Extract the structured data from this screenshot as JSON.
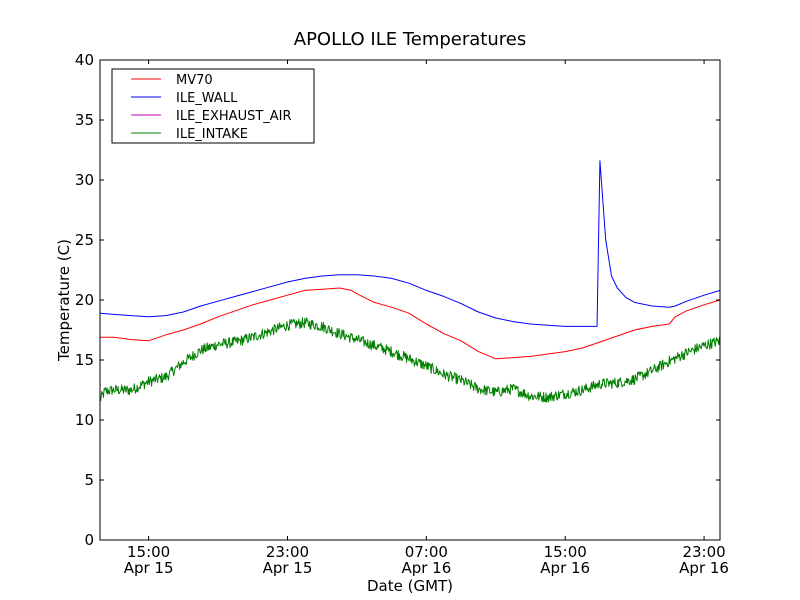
{
  "chart_data": {
    "type": "line",
    "title": "APOLLO ILE Temperatures",
    "xlabel": "Date (GMT)",
    "ylabel": "Temperature (C)",
    "xlim": [
      "2013-04-15 12:12",
      "2013-04-16 23:55"
    ],
    "ylim": [
      0,
      40
    ],
    "yticks": [
      0,
      5,
      10,
      15,
      20,
      25,
      30,
      35,
      40
    ],
    "xticks": [
      {
        "x": "2013-04-15 15:00",
        "time": "15:00",
        "date": "Apr 15"
      },
      {
        "x": "2013-04-15 23:00",
        "time": "23:00",
        "date": "Apr 15"
      },
      {
        "x": "2013-04-16 07:00",
        "time": "07:00",
        "date": "Apr 16"
      },
      {
        "x": "2013-04-16 15:00",
        "time": "15:00",
        "date": "Apr 16"
      },
      {
        "x": "2013-04-16 23:00",
        "time": "23:00",
        "date": "Apr 16"
      }
    ],
    "grid": false,
    "legend_position": "top-left",
    "series": [
      {
        "name": "MV70",
        "color": "#ff0000",
        "x": [
          "2013-04-15 12:12",
          "2013-04-15 13:00",
          "2013-04-15 14:00",
          "2013-04-15 15:00",
          "2013-04-15 16:00",
          "2013-04-15 17:00",
          "2013-04-15 18:00",
          "2013-04-15 19:00",
          "2013-04-15 20:00",
          "2013-04-15 21:00",
          "2013-04-15 22:00",
          "2013-04-15 23:00",
          "2013-04-16 00:00",
          "2013-04-16 01:00",
          "2013-04-16 02:00",
          "2013-04-16 02:40",
          "2013-04-16 03:10",
          "2013-04-16 04:00",
          "2013-04-16 05:00",
          "2013-04-16 06:00",
          "2013-04-16 06:40",
          "2013-04-16 07:00",
          "2013-04-16 08:00",
          "2013-04-16 09:00",
          "2013-04-16 10:00",
          "2013-04-16 11:00",
          "2013-04-16 12:00",
          "2013-04-16 13:00",
          "2013-04-16 14:00",
          "2013-04-16 15:00",
          "2013-04-16 16:00",
          "2013-04-16 17:00",
          "2013-04-16 18:00",
          "2013-04-16 19:00",
          "2013-04-16 20:00",
          "2013-04-16 21:00",
          "2013-04-16 21:20",
          "2013-04-16 22:00",
          "2013-04-16 23:00",
          "2013-04-16 23:55"
        ],
        "y": [
          16.9,
          16.9,
          16.7,
          16.6,
          17.1,
          17.5,
          18.0,
          18.6,
          19.1,
          19.6,
          20.0,
          20.4,
          20.8,
          20.9,
          21.0,
          20.8,
          20.4,
          19.8,
          19.4,
          18.9,
          18.3,
          18.0,
          17.2,
          16.6,
          15.7,
          15.1,
          15.2,
          15.3,
          15.5,
          15.7,
          16.0,
          16.5,
          17.0,
          17.5,
          17.8,
          18.0,
          18.6,
          19.1,
          19.6,
          20.0
        ]
      },
      {
        "name": "ILE_WALL",
        "color": "#0000ff",
        "x": [
          "2013-04-15 12:12",
          "2013-04-15 13:00",
          "2013-04-15 14:00",
          "2013-04-15 15:00",
          "2013-04-15 16:00",
          "2013-04-15 17:00",
          "2013-04-15 18:00",
          "2013-04-15 19:00",
          "2013-04-15 20:00",
          "2013-04-15 21:00",
          "2013-04-15 22:00",
          "2013-04-15 23:00",
          "2013-04-16 00:00",
          "2013-04-16 01:00",
          "2013-04-16 02:00",
          "2013-04-16 03:00",
          "2013-04-16 04:00",
          "2013-04-16 05:00",
          "2013-04-16 06:00",
          "2013-04-16 07:00",
          "2013-04-16 08:00",
          "2013-04-16 09:00",
          "2013-04-16 10:00",
          "2013-04-16 11:00",
          "2013-04-16 12:00",
          "2013-04-16 13:00",
          "2013-04-16 14:00",
          "2013-04-16 15:00",
          "2013-04-16 16:00",
          "2013-04-16 16:50",
          "2013-04-16 17:00",
          "2013-04-16 17:20",
          "2013-04-16 17:40",
          "2013-04-16 18:00",
          "2013-04-16 18:30",
          "2013-04-16 19:00",
          "2013-04-16 20:00",
          "2013-04-16 21:00",
          "2013-04-16 21:20",
          "2013-04-16 22:00",
          "2013-04-16 23:00",
          "2013-04-16 23:55"
        ],
        "y": [
          18.9,
          18.8,
          18.7,
          18.6,
          18.7,
          19.0,
          19.5,
          19.9,
          20.3,
          20.7,
          21.1,
          21.5,
          21.8,
          22.0,
          22.1,
          22.1,
          22.0,
          21.8,
          21.4,
          20.8,
          20.3,
          19.7,
          19.0,
          18.5,
          18.2,
          18.0,
          17.9,
          17.8,
          17.8,
          17.8,
          31.6,
          25.0,
          22.0,
          21.0,
          20.2,
          19.8,
          19.5,
          19.4,
          19.5,
          19.9,
          20.4,
          20.8
        ]
      },
      {
        "name": "ILE_EXHAUST_AIR",
        "color": "#bf00bf",
        "x": [],
        "y": []
      },
      {
        "name": "ILE_INTAKE",
        "color": "#008000",
        "x": [
          "2013-04-15 12:12",
          "2013-04-15 12:30",
          "2013-04-15 13:00",
          "2013-04-15 14:00",
          "2013-04-15 15:00",
          "2013-04-15 16:00",
          "2013-04-15 17:00",
          "2013-04-15 18:00",
          "2013-04-15 19:00",
          "2013-04-15 20:00",
          "2013-04-15 21:00",
          "2013-04-15 22:00",
          "2013-04-15 23:00",
          "2013-04-16 00:00",
          "2013-04-16 01:00",
          "2013-04-16 02:00",
          "2013-04-16 03:00",
          "2013-04-16 04:00",
          "2013-04-16 05:00",
          "2013-04-16 06:00",
          "2013-04-16 07:00",
          "2013-04-16 08:00",
          "2013-04-16 09:00",
          "2013-04-16 10:00",
          "2013-04-16 11:00",
          "2013-04-16 12:00",
          "2013-04-16 13:00",
          "2013-04-16 14:00",
          "2013-04-16 15:00",
          "2013-04-16 16:00",
          "2013-04-16 17:00",
          "2013-04-16 18:00",
          "2013-04-16 19:00",
          "2013-04-16 20:00",
          "2013-04-16 21:00",
          "2013-04-16 22:00",
          "2013-04-16 23:00",
          "2013-04-16 23:55"
        ],
        "y": [
          11.7,
          12.4,
          12.5,
          12.5,
          13.2,
          13.6,
          14.8,
          15.8,
          16.3,
          16.5,
          16.9,
          17.4,
          17.9,
          18.1,
          17.8,
          17.2,
          16.7,
          16.2,
          15.7,
          15.1,
          14.5,
          13.8,
          13.3,
          12.6,
          12.3,
          12.6,
          12.0,
          11.9,
          12.2,
          12.5,
          13.0,
          13.1,
          13.4,
          14.1,
          14.9,
          15.6,
          16.2,
          16.6
        ]
      }
    ]
  }
}
